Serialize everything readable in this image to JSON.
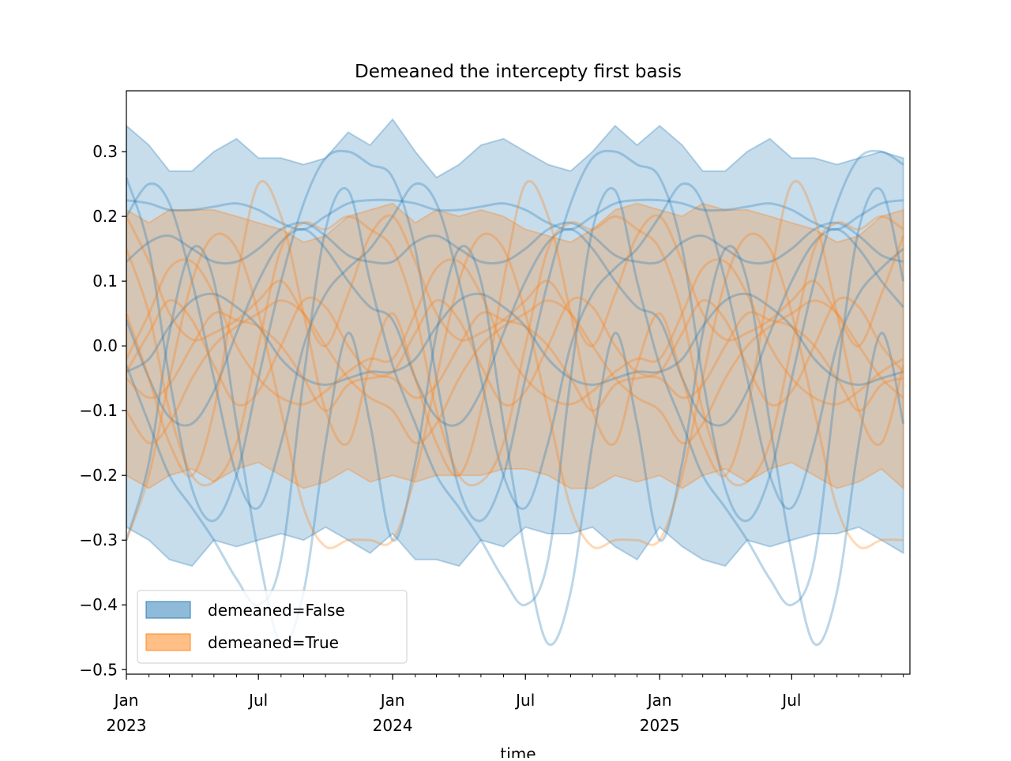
{
  "chart_data": {
    "type": "line",
    "title": "Demeaned the intercepty first basis",
    "xlabel": "time",
    "ylabel": "",
    "xlim": [
      "2023-01-01",
      "2025-12-10"
    ],
    "ylim": [
      -0.507,
      0.394
    ],
    "grid": false,
    "legend_placement": "lower left",
    "colors": {
      "demeaned_false": "#1f77b4",
      "demeaned_true": "#ff7f0e"
    },
    "yticks": [
      "0.3",
      "0.2",
      "0.1",
      "0.0",
      "−0.1",
      "−0.2",
      "−0.3",
      "−0.4",
      "−0.5"
    ],
    "ytick_values": [
      0.3,
      0.2,
      0.1,
      0.0,
      -0.1,
      -0.2,
      -0.3,
      -0.4,
      -0.5
    ],
    "xticks": [
      {
        "date": "2023-01-01",
        "line1": "Jan",
        "line2": "2023"
      },
      {
        "date": "2023-07-01",
        "line1": "Jul",
        "line2": ""
      },
      {
        "date": "2024-01-01",
        "line1": "Jan",
        "line2": "2024"
      },
      {
        "date": "2024-07-01",
        "line1": "Jul",
        "line2": ""
      },
      {
        "date": "2025-01-01",
        "line1": "Jan",
        "line2": "2025"
      },
      {
        "date": "2025-07-01",
        "line1": "Jul",
        "line2": ""
      }
    ],
    "legend": [
      {
        "label": "demeaned=False",
        "color": "#1f77b4"
      },
      {
        "label": "demeaned=True",
        "color": "#ff7f0e"
      }
    ],
    "x": [
      "2023-01-01",
      "2023-02-01",
      "2023-03-01",
      "2023-04-01",
      "2023-05-01",
      "2023-06-01",
      "2023-07-01",
      "2023-08-01",
      "2023-09-01",
      "2023-10-01",
      "2023-11-01",
      "2023-12-01",
      "2024-01-01",
      "2024-02-01",
      "2024-03-01",
      "2024-04-01",
      "2024-05-01",
      "2024-06-01",
      "2024-07-01",
      "2024-08-01",
      "2024-09-01",
      "2024-10-01",
      "2024-11-01",
      "2024-12-01",
      "2025-01-01",
      "2025-02-01",
      "2025-03-01",
      "2025-04-01",
      "2025-05-01",
      "2025-06-01",
      "2025-07-01",
      "2025-08-01",
      "2025-09-01",
      "2025-10-01",
      "2025-11-01",
      "2025-12-01"
    ],
    "bands": [
      {
        "group": "demeaned=False",
        "color": "#1f77b4",
        "upper": [
          0.34,
          0.31,
          0.27,
          0.27,
          0.3,
          0.32,
          0.29,
          0.29,
          0.28,
          0.29,
          0.33,
          0.31,
          0.35,
          0.3,
          0.26,
          0.28,
          0.31,
          0.32,
          0.3,
          0.28,
          0.27,
          0.3,
          0.34,
          0.31,
          0.34,
          0.31,
          0.27,
          0.27,
          0.3,
          0.32,
          0.29,
          0.29,
          0.28,
          0.29,
          0.3,
          0.29
        ],
        "lower": [
          -0.28,
          -0.3,
          -0.33,
          -0.34,
          -0.3,
          -0.31,
          -0.3,
          -0.29,
          -0.3,
          -0.28,
          -0.3,
          -0.32,
          -0.29,
          -0.33,
          -0.33,
          -0.34,
          -0.3,
          -0.31,
          -0.28,
          -0.29,
          -0.29,
          -0.28,
          -0.31,
          -0.33,
          -0.28,
          -0.31,
          -0.33,
          -0.34,
          -0.3,
          -0.31,
          -0.3,
          -0.29,
          -0.29,
          -0.28,
          -0.3,
          -0.32
        ]
      },
      {
        "group": "demeaned=True",
        "color": "#ff7f0e",
        "upper": [
          0.21,
          0.19,
          0.21,
          0.21,
          0.21,
          0.2,
          0.19,
          0.18,
          0.16,
          0.17,
          0.2,
          0.21,
          0.22,
          0.19,
          0.21,
          0.2,
          0.21,
          0.2,
          0.18,
          0.17,
          0.16,
          0.18,
          0.21,
          0.22,
          0.21,
          0.2,
          0.22,
          0.21,
          0.21,
          0.2,
          0.19,
          0.18,
          0.16,
          0.17,
          0.2,
          0.21
        ],
        "lower": [
          -0.2,
          -0.22,
          -0.2,
          -0.19,
          -0.21,
          -0.19,
          -0.18,
          -0.2,
          -0.22,
          -0.21,
          -0.19,
          -0.21,
          -0.2,
          -0.21,
          -0.2,
          -0.2,
          -0.2,
          -0.19,
          -0.19,
          -0.2,
          -0.22,
          -0.22,
          -0.2,
          -0.21,
          -0.2,
          -0.22,
          -0.2,
          -0.19,
          -0.21,
          -0.19,
          -0.18,
          -0.2,
          -0.22,
          -0.21,
          -0.19,
          -0.22
        ]
      }
    ],
    "series": [
      {
        "group": "demeaned=False",
        "color": "#1f77b4",
        "values": [
          0.26,
          0.15,
          -0.05,
          -0.22,
          -0.27,
          -0.2,
          -0.05,
          0.1,
          0.22,
          0.29,
          0.3,
          0.28,
          0.26,
          0.15,
          -0.05,
          -0.22,
          -0.27,
          -0.2,
          -0.05,
          0.1,
          0.22,
          0.29,
          0.3,
          0.28,
          0.26,
          0.15,
          -0.05,
          -0.22,
          -0.27,
          -0.2,
          -0.05,
          0.1,
          0.22,
          0.29,
          0.3,
          0.28
        ]
      },
      {
        "group": "demeaned=False",
        "color": "#1f77b4",
        "values": [
          0.225,
          0.22,
          0.21,
          0.21,
          0.215,
          0.22,
          0.21,
          0.19,
          0.18,
          0.2,
          0.22,
          0.225,
          0.225,
          0.22,
          0.21,
          0.21,
          0.215,
          0.22,
          0.21,
          0.19,
          0.18,
          0.2,
          0.22,
          0.225,
          0.225,
          0.22,
          0.21,
          0.21,
          0.215,
          0.22,
          0.21,
          0.19,
          0.18,
          0.2,
          0.22,
          0.225
        ]
      },
      {
        "group": "demeaned=False",
        "color": "#1f77b4",
        "values": [
          0.13,
          0.16,
          0.17,
          0.15,
          0.13,
          0.13,
          0.15,
          0.18,
          0.19,
          0.17,
          0.14,
          0.13,
          0.13,
          0.16,
          0.17,
          0.15,
          0.13,
          0.13,
          0.15,
          0.18,
          0.19,
          0.17,
          0.14,
          0.13,
          0.13,
          0.16,
          0.17,
          0.15,
          0.13,
          0.13,
          0.15,
          0.18,
          0.19,
          0.17,
          0.14,
          0.13
        ]
      },
      {
        "group": "demeaned=False",
        "color": "#1f77b4",
        "values": [
          0.04,
          -0.05,
          -0.11,
          -0.12,
          -0.07,
          0.02,
          0.1,
          0.16,
          0.18,
          0.15,
          0.1,
          0.06,
          0.04,
          -0.05,
          -0.11,
          -0.12,
          -0.07,
          0.02,
          0.1,
          0.16,
          0.18,
          0.15,
          0.1,
          0.06,
          0.04,
          -0.05,
          -0.11,
          -0.12,
          -0.07,
          0.02,
          0.1,
          0.16,
          0.18,
          0.15,
          0.1,
          0.06
        ]
      },
      {
        "group": "demeaned=False",
        "color": "#1f77b4",
        "values": [
          0.2,
          0.25,
          0.22,
          0.1,
          -0.05,
          -0.2,
          -0.25,
          -0.15,
          0.0,
          0.08,
          0.12,
          0.15,
          0.2,
          0.25,
          0.22,
          0.1,
          -0.05,
          -0.2,
          -0.25,
          -0.15,
          0.0,
          0.08,
          0.12,
          0.15,
          0.2,
          0.25,
          0.22,
          0.1,
          -0.05,
          -0.2,
          -0.25,
          -0.15,
          0.0,
          0.08,
          0.12,
          0.15
        ]
      },
      {
        "group": "demeaned=False",
        "color": "#1f77b4",
        "values": [
          -0.04,
          -0.02,
          0.03,
          0.07,
          0.08,
          0.06,
          0.03,
          -0.02,
          -0.05,
          -0.06,
          -0.05,
          -0.04,
          -0.04,
          -0.02,
          0.03,
          0.07,
          0.08,
          0.06,
          0.03,
          -0.02,
          -0.05,
          -0.06,
          -0.05,
          -0.04,
          -0.04,
          -0.02,
          0.03,
          0.07,
          0.08,
          0.06,
          0.03,
          -0.02,
          -0.05,
          -0.06,
          -0.05,
          -0.04
        ]
      },
      {
        "group": "demeaned=False",
        "color": "#1f77b4",
        "values": [
          -0.03,
          -0.12,
          -0.2,
          -0.25,
          -0.3,
          -0.36,
          -0.4,
          -0.33,
          -0.05,
          0.18,
          0.24,
          0.1,
          -0.03,
          -0.12,
          -0.2,
          -0.25,
          -0.3,
          -0.36,
          -0.4,
          -0.33,
          -0.05,
          0.18,
          0.24,
          0.1,
          -0.03,
          -0.12,
          -0.2,
          -0.25,
          -0.3,
          -0.36,
          -0.4,
          -0.33,
          -0.05,
          0.18,
          0.24,
          0.1
        ]
      },
      {
        "group": "demeaned=False",
        "color": "#1f77b4",
        "values": [
          -0.3,
          -0.18,
          0.02,
          0.15,
          0.1,
          -0.12,
          -0.32,
          -0.46,
          -0.38,
          -0.15,
          0.02,
          -0.12,
          -0.3,
          -0.18,
          0.02,
          0.15,
          0.1,
          -0.12,
          -0.32,
          -0.46,
          -0.38,
          -0.15,
          0.02,
          -0.12,
          -0.3,
          -0.18,
          0.02,
          0.15,
          0.1,
          -0.12,
          -0.32,
          -0.46,
          -0.38,
          -0.15,
          0.02,
          -0.12
        ]
      },
      {
        "group": "demeaned=True",
        "color": "#ff7f0e",
        "values": [
          0.05,
          -0.05,
          -0.15,
          -0.2,
          -0.1,
          0.1,
          0.25,
          0.2,
          0.05,
          -0.1,
          -0.15,
          -0.03,
          0.05,
          -0.05,
          -0.15,
          -0.2,
          -0.1,
          0.1,
          0.25,
          0.2,
          0.05,
          -0.1,
          -0.15,
          -0.03,
          0.05,
          -0.05,
          -0.15,
          -0.2,
          -0.1,
          0.1,
          0.25,
          0.2,
          0.05,
          -0.1,
          -0.15,
          -0.03
        ]
      },
      {
        "group": "demeaned=True",
        "color": "#ff7f0e",
        "values": [
          -0.02,
          0.05,
          0.12,
          0.13,
          0.08,
          0.0,
          -0.05,
          -0.08,
          -0.09,
          -0.07,
          -0.04,
          -0.02,
          -0.02,
          0.05,
          0.12,
          0.13,
          0.08,
          0.0,
          -0.05,
          -0.08,
          -0.09,
          -0.07,
          -0.04,
          -0.02,
          -0.02,
          0.05,
          0.12,
          0.13,
          0.08,
          0.0,
          -0.05,
          -0.08,
          -0.09,
          -0.07,
          -0.04,
          -0.02
        ]
      },
      {
        "group": "demeaned=True",
        "color": "#ff7f0e",
        "values": [
          -0.1,
          -0.15,
          -0.12,
          -0.05,
          0.0,
          0.03,
          0.05,
          0.07,
          0.05,
          0.0,
          -0.05,
          -0.08,
          -0.1,
          -0.15,
          -0.12,
          -0.05,
          0.0,
          0.03,
          0.05,
          0.07,
          0.05,
          0.0,
          -0.05,
          -0.08,
          -0.1,
          -0.15,
          -0.12,
          -0.05,
          0.0,
          0.03,
          0.05,
          0.07,
          0.05,
          0.0,
          -0.05,
          -0.08
        ]
      },
      {
        "group": "demeaned=True",
        "color": "#ff7f0e",
        "values": [
          0.15,
          0.05,
          -0.1,
          -0.2,
          -0.21,
          -0.15,
          0.0,
          0.15,
          0.19,
          0.18,
          0.2,
          0.18,
          0.15,
          0.05,
          -0.1,
          -0.2,
          -0.21,
          -0.15,
          0.0,
          0.15,
          0.19,
          0.18,
          0.2,
          0.18,
          0.15,
          0.05,
          -0.1,
          -0.2,
          -0.21,
          -0.15,
          0.0,
          0.15,
          0.19,
          0.18,
          0.2,
          0.18
        ]
      },
      {
        "group": "demeaned=True",
        "color": "#ff7f0e",
        "values": [
          -0.05,
          -0.08,
          -0.06,
          0.0,
          0.05,
          0.04,
          0.03,
          0.0,
          -0.05,
          -0.1,
          -0.06,
          -0.05,
          -0.05,
          -0.08,
          -0.06,
          0.0,
          0.05,
          0.04,
          0.03,
          0.0,
          -0.05,
          -0.1,
          -0.06,
          -0.05,
          -0.05,
          -0.08,
          -0.06,
          0.0,
          0.05,
          0.04,
          0.03,
          0.0,
          -0.05,
          -0.1,
          -0.06,
          -0.05
        ]
      },
      {
        "group": "demeaned=True",
        "color": "#ff7f0e",
        "values": [
          -0.3,
          -0.2,
          -0.05,
          0.1,
          0.17,
          0.15,
          0.05,
          -0.1,
          -0.25,
          -0.31,
          -0.3,
          -0.3,
          -0.3,
          -0.2,
          -0.05,
          0.1,
          0.17,
          0.15,
          0.05,
          -0.1,
          -0.25,
          -0.31,
          -0.3,
          -0.3,
          -0.3,
          -0.2,
          -0.05,
          0.1,
          0.17,
          0.15,
          0.05,
          -0.1,
          -0.25,
          -0.31,
          -0.3,
          -0.3
        ]
      },
      {
        "group": "demeaned=True",
        "color": "#ff7f0e",
        "values": [
          0.2,
          0.13,
          0.05,
          0.01,
          0.02,
          0.04,
          0.07,
          0.1,
          0.05,
          0.0,
          0.08,
          0.17,
          0.2,
          0.13,
          0.05,
          0.01,
          0.02,
          0.04,
          0.07,
          0.1,
          0.05,
          0.0,
          0.08,
          0.17,
          0.2,
          0.13,
          0.05,
          0.01,
          0.02,
          0.04,
          0.07,
          0.1,
          0.05,
          0.0,
          0.08,
          0.17
        ]
      },
      {
        "group": "demeaned=True",
        "color": "#ff7f0e",
        "values": [
          -0.04,
          0.02,
          0.07,
          0.04,
          -0.03,
          -0.09,
          -0.07,
          0.0,
          0.07,
          0.06,
          0.0,
          -0.04,
          -0.04,
          0.02,
          0.07,
          0.04,
          -0.03,
          -0.09,
          -0.07,
          0.0,
          0.07,
          0.06,
          0.0,
          -0.04,
          -0.04,
          0.02,
          0.07,
          0.04,
          -0.03,
          -0.09,
          -0.07,
          0.0,
          0.07,
          0.06,
          0.0,
          -0.04
        ]
      }
    ]
  }
}
